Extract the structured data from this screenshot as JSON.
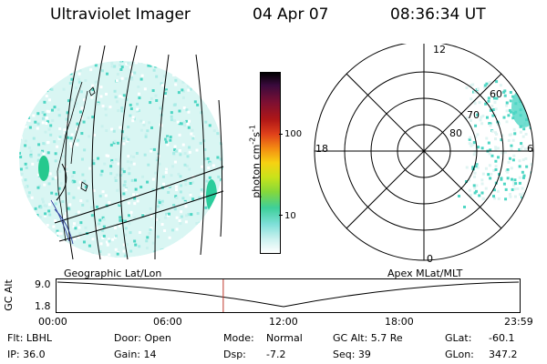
{
  "header": {
    "title": "Ultraviolet Imager",
    "date": "04 Apr 07",
    "time": "08:36:34 UT"
  },
  "colorbar": {
    "unit_label": "photon cm",
    "exp1": "-2",
    "mid": "s",
    "exp2": "-1",
    "ticks": [
      "100",
      "10"
    ]
  },
  "polar": {
    "mlt_labels": {
      "top": "12",
      "left": "18",
      "right": "6",
      "bottom": "0"
    },
    "lat_labels": [
      "60",
      "70",
      "80"
    ]
  },
  "map_labels": {
    "left": "Geographic Lat/Lon",
    "right": "Apex  MLat/MLT"
  },
  "timeline": {
    "y_title": "GC Alt",
    "y_top": "9.0",
    "y_bottom": "1.8",
    "x_ticks": [
      "00:00",
      "06:00",
      "12:00",
      "18:00",
      "23:59"
    ],
    "current_time_fraction": 0.36
  },
  "info": {
    "col1": [
      "Flt: LBHL",
      "IP: 36.0"
    ],
    "col2": [
      "Door: Open",
      "Gain: 14"
    ],
    "col3_a": [
      "Mode:",
      "Dsp:"
    ],
    "col3_b": [
      "Normal",
      "-7.2"
    ],
    "col4": [
      "GC Alt: 5.7 Re",
      "Seq: 39"
    ],
    "col5_a": [
      "GLat:",
      "GLon:"
    ],
    "col5_b": [
      "-60.1",
      "347.2"
    ]
  },
  "colors": {
    "aurora_low": "#a8ece6",
    "aurora_mid": "#4ed6c4",
    "aurora_high": "#1fc9a0",
    "marker": "#c0392b"
  }
}
